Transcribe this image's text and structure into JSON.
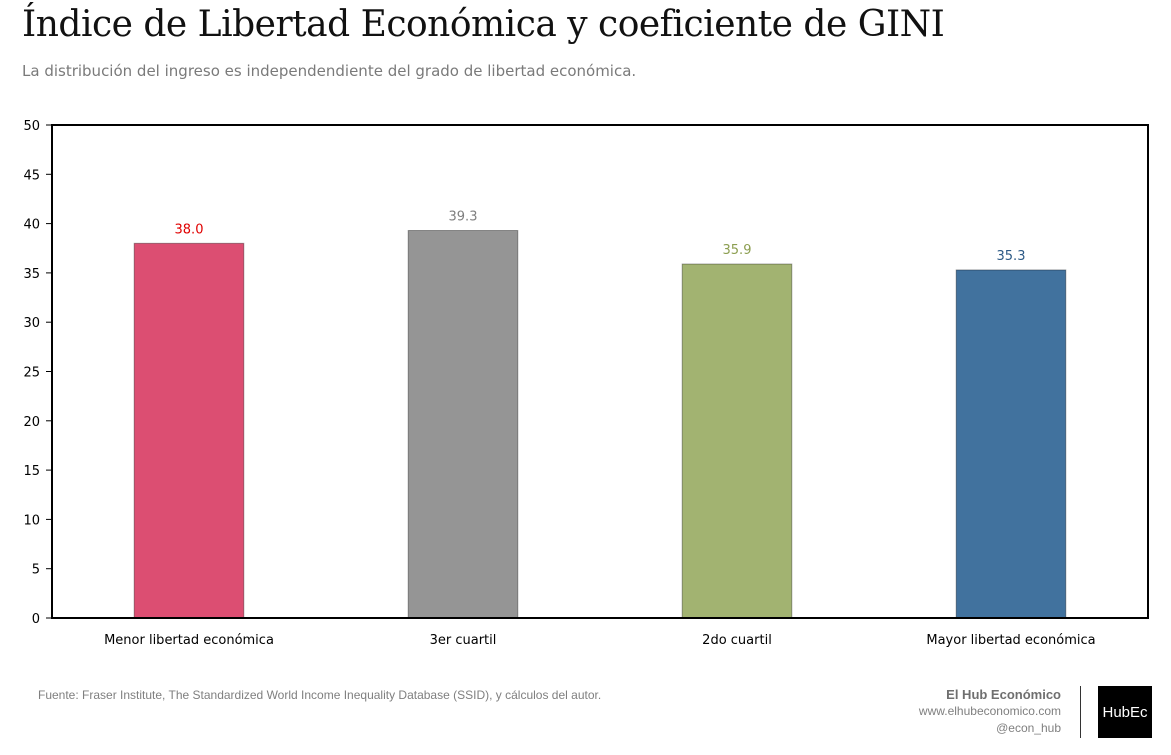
{
  "title": "Índice de Libertad Económica y coeficiente de GINI",
  "subtitle": "La distribución del ingreso es independendiente del grado de libertad económica.",
  "chart_data": {
    "type": "bar",
    "categories": [
      "Menor libertad económica",
      "3er cuartil",
      "2do cuartil",
      "Mayor libertad económica"
    ],
    "values": [
      38.0,
      39.3,
      35.9,
      35.3
    ],
    "data_labels": [
      "38.0",
      "39.3",
      "35.9",
      "35.3"
    ],
    "colors": [
      "#dc4e72",
      "#959595",
      "#a2b371",
      "#41729e"
    ],
    "label_colors": [
      "#e00000",
      "#7f7f7f",
      "#8c9e50",
      "#2d5a86"
    ],
    "ylim": [
      0,
      50
    ],
    "yticks": [
      0,
      5,
      10,
      15,
      20,
      25,
      30,
      35,
      40,
      45,
      50
    ],
    "grid": false,
    "legend": "none"
  },
  "footer": {
    "source": "Fuente: Fraser Institute, The Standardized World Income Inequality Database (SSID), y cálculos del autor.",
    "brand_name": "El Hub Económico",
    "brand_url": "www.elhubeconomico.com",
    "brand_handle": "@econ_hub",
    "logo_text": "HubEc"
  }
}
